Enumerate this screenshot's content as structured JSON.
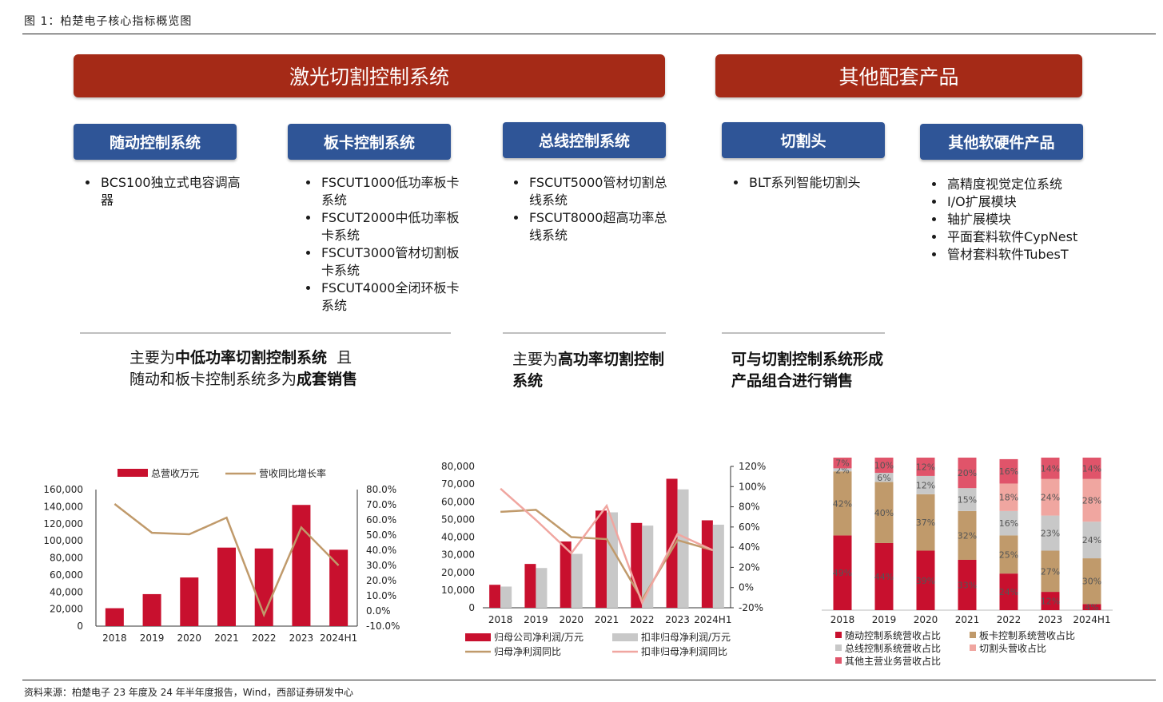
{
  "figure_title": "图 1：柏楚电子核心指标概览图",
  "source": "资料来源：柏楚电子 23 年度及 24 年半年度报告，Wind，西部证券研发中心",
  "banners": {
    "laser": "激光切割控制系统",
    "other": "其他配套产品"
  },
  "categories": [
    {
      "title": "随动控制系统",
      "items": [
        "BCS100独立式电容调高器"
      ]
    },
    {
      "title": "板卡控制系统",
      "items": [
        "FSCUT1000低功率板卡系统",
        "FSCUT2000中低功率板卡系统",
        "FSCUT3000管材切割板卡系统",
        "FSCUT4000全闭环板卡系统"
      ]
    },
    {
      "title": "总线控制系统",
      "items": [
        "FSCUT5000管材切割总线系统",
        "FSCUT8000超高功率总线系统"
      ]
    },
    {
      "title": "切割头",
      "items": [
        "BLT系列智能切割头"
      ]
    },
    {
      "title": "其他软硬件产品",
      "items": [
        "高精度视觉定位系统",
        "I/O扩展模块",
        "轴扩展模块",
        "平面套料软件CypNest",
        "管材套料软件TubesT"
      ]
    }
  ],
  "notes": {
    "n1": {
      "a": "主要为",
      "b": "中低功率切割控制系统",
      "c": "且",
      "d": "随动和板卡控制系统多为",
      "e": "成套销售"
    },
    "n2": {
      "a": "主要为",
      "b": "高功率切割控制系统"
    },
    "n3": {
      "b": "可与切割控制系统形成产品组合进行销售"
    }
  },
  "colors": {
    "banner": "#a52a17",
    "tag": "#2f5597",
    "red": "#c8102e",
    "tan": "#c09a6b",
    "gray": "#c8c8c8",
    "pink": "#f0a6a0",
    "rose": "#e0546a"
  },
  "chart_data": [
    {
      "type": "bar",
      "categories": [
        "2018",
        "2019",
        "2020",
        "2021",
        "2022",
        "2023",
        "2024H1"
      ],
      "series": [
        {
          "name": "总营收万元",
          "kind": "bar",
          "axis": "left",
          "values": [
            21000,
            37500,
            57000,
            92000,
            91000,
            142000,
            89500
          ]
        },
        {
          "name": "营收同比增长率",
          "kind": "line",
          "axis": "right",
          "values": [
            70.5,
            51.5,
            50.5,
            61.5,
            -2.5,
            55.0,
            30.0
          ]
        }
      ],
      "y_left": {
        "ylim": [
          0,
          160000
        ],
        "ticks": [
          "0",
          "20,000",
          "40,000",
          "60,000",
          "80,000",
          "100,000",
          "120,000",
          "140,000",
          "160,000"
        ]
      },
      "y_right": {
        "ylim": [
          -10,
          80
        ],
        "ticks": [
          "-10.0%",
          "0.0%",
          "10.0%",
          "20.0%",
          "30.0%",
          "40.0%",
          "50.0%",
          "60.0%",
          "70.0%",
          "80.0%"
        ]
      },
      "legend": "top"
    },
    {
      "type": "bar",
      "categories": [
        "2018",
        "2019",
        "2020",
        "2021",
        "2022",
        "2023",
        "2024H1"
      ],
      "series": [
        {
          "name": "归母公司净利润/万元",
          "kind": "bar",
          "axis": "left",
          "values": [
            13000,
            24800,
            37500,
            55000,
            48000,
            73000,
            49500
          ]
        },
        {
          "name": "扣非归母净利润/万元",
          "kind": "bar",
          "axis": "left",
          "values": [
            12000,
            22500,
            30500,
            54000,
            46500,
            67000,
            47000
          ]
        },
        {
          "name": "归母净利润同比",
          "kind": "line",
          "axis": "right",
          "values": [
            75,
            77,
            50,
            48,
            -12,
            47,
            37
          ]
        },
        {
          "name": "扣非归母净利润同比",
          "kind": "line",
          "axis": "right",
          "values": [
            98,
            67,
            34,
            81,
            -15,
            53,
            37
          ]
        }
      ],
      "y_left": {
        "ylim": [
          0,
          80000
        ],
        "ticks": [
          "0",
          "10,000",
          "20,000",
          "30,000",
          "40,000",
          "50,000",
          "60,000",
          "70,000",
          "80,000"
        ]
      },
      "y_right": {
        "ylim": [
          -20,
          120
        ],
        "ticks": [
          "-20%",
          "0%",
          "20%",
          "40%",
          "60%",
          "80%",
          "100%",
          "120%"
        ]
      },
      "legend": "bottom"
    },
    {
      "type": "bar",
      "stacked": true,
      "categories": [
        "2018",
        "2019",
        "2020",
        "2021",
        "2022",
        "2023",
        "2024H1"
      ],
      "series": [
        {
          "name": "随动控制系统营收占比",
          "values": [
            49,
            44,
            39,
            33,
            24,
            12,
            4
          ]
        },
        {
          "name": "板卡控制系统营收占比",
          "values": [
            42,
            40,
            37,
            32,
            25,
            27,
            30
          ]
        },
        {
          "name": "总线控制系统营收占比",
          "values": [
            2,
            6,
            12,
            15,
            16,
            23,
            24
          ]
        },
        {
          "name": "切割头营收占比",
          "values": [
            0,
            0,
            0,
            0,
            18,
            24,
            28
          ]
        },
        {
          "name": "其他主营业务营收占比",
          "values": [
            7,
            10,
            12,
            20,
            16,
            14,
            14
          ]
        }
      ],
      "labels": [
        [
          "49%",
          "42%",
          "2%",
          "",
          "7%"
        ],
        [
          "44%",
          "40%",
          "6%",
          "",
          "10%"
        ],
        [
          "39%",
          "37%",
          "12%",
          "",
          "12%"
        ],
        [
          "33%",
          "32%",
          "15%",
          "",
          "20%"
        ],
        [
          "24%",
          "25%",
          "16%",
          "18%",
          "16%"
        ],
        [
          "12%",
          "27%",
          "23%",
          "24%",
          "14%"
        ],
        [
          "4%",
          "30%",
          "24%",
          "28%",
          "14%"
        ]
      ],
      "ylim": [
        0,
        100
      ],
      "legend": "bottom"
    }
  ]
}
